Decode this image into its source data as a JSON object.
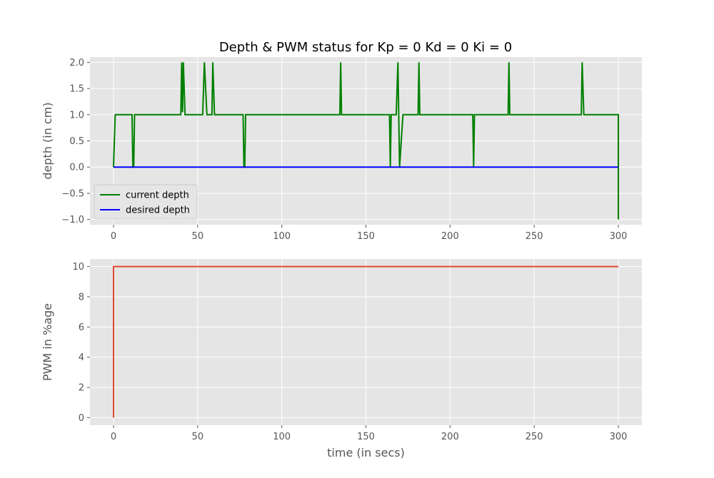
{
  "title": "Depth & PWM status for Kp = 0 Kd = 0 Ki = 0",
  "chart_data": [
    {
      "type": "line",
      "ylabel": "depth (in cm)",
      "xlim": [
        -14,
        314
      ],
      "ylim": [
        -1.1,
        2.1
      ],
      "xticks": [
        0,
        50,
        100,
        150,
        200,
        250,
        300
      ],
      "yticks": [
        {
          "value": -1.0,
          "label": "−1.0"
        },
        {
          "value": -0.5,
          "label": "−0.5"
        },
        {
          "value": 0.0,
          "label": "0.0"
        },
        {
          "value": 0.5,
          "label": "0.5"
        },
        {
          "value": 1.0,
          "label": "1.0"
        },
        {
          "value": 1.5,
          "label": "1.5"
        },
        {
          "value": 2.0,
          "label": "2.0"
        }
      ],
      "grid": true,
      "legend": "lower-left",
      "series": [
        {
          "name": "current depth",
          "color": "#008000",
          "x": [
            0,
            1,
            11,
            11.5,
            12,
            12.5,
            40,
            40.5,
            41,
            41.5,
            42.5,
            53,
            54,
            55.5,
            58.5,
            59,
            60,
            77,
            77.5,
            78,
            78.5,
            134.5,
            135,
            135.5,
            164,
            164.5,
            165,
            168,
            169,
            170,
            172,
            181,
            181.5,
            182,
            213.5,
            214,
            214.5,
            234.5,
            235,
            235.5,
            278,
            278.5,
            279.5,
            300,
            300
          ],
          "y": [
            0,
            1,
            1,
            0,
            0,
            1,
            1,
            2,
            1.05,
            2,
            1,
            1,
            2,
            1,
            1,
            2,
            1,
            1,
            0,
            0,
            1,
            1,
            2,
            1,
            1,
            0,
            1,
            1,
            2,
            0,
            1,
            1,
            2,
            1,
            1,
            0,
            1,
            1,
            2,
            1,
            1,
            2,
            1,
            1,
            -1
          ]
        },
        {
          "name": "desired depth",
          "color": "#0000ff",
          "x": [
            0,
            300
          ],
          "y": [
            0,
            0
          ]
        }
      ]
    },
    {
      "type": "line",
      "ylabel": "PWM in %age",
      "xlabel": "time (in secs)",
      "xlim": [
        -14,
        314
      ],
      "ylim": [
        -0.5,
        10.5
      ],
      "xticks": [
        0,
        50,
        100,
        150,
        200,
        250,
        300
      ],
      "yticks": [
        {
          "value": 0,
          "label": "0"
        },
        {
          "value": 2,
          "label": "2"
        },
        {
          "value": 4,
          "label": "4"
        },
        {
          "value": 6,
          "label": "6"
        },
        {
          "value": 8,
          "label": "8"
        },
        {
          "value": 10,
          "label": "10"
        }
      ],
      "grid": true,
      "series": [
        {
          "color": "#e24a33",
          "x": [
            0,
            0,
            300
          ],
          "y": [
            0,
            10,
            10
          ]
        }
      ]
    }
  ]
}
